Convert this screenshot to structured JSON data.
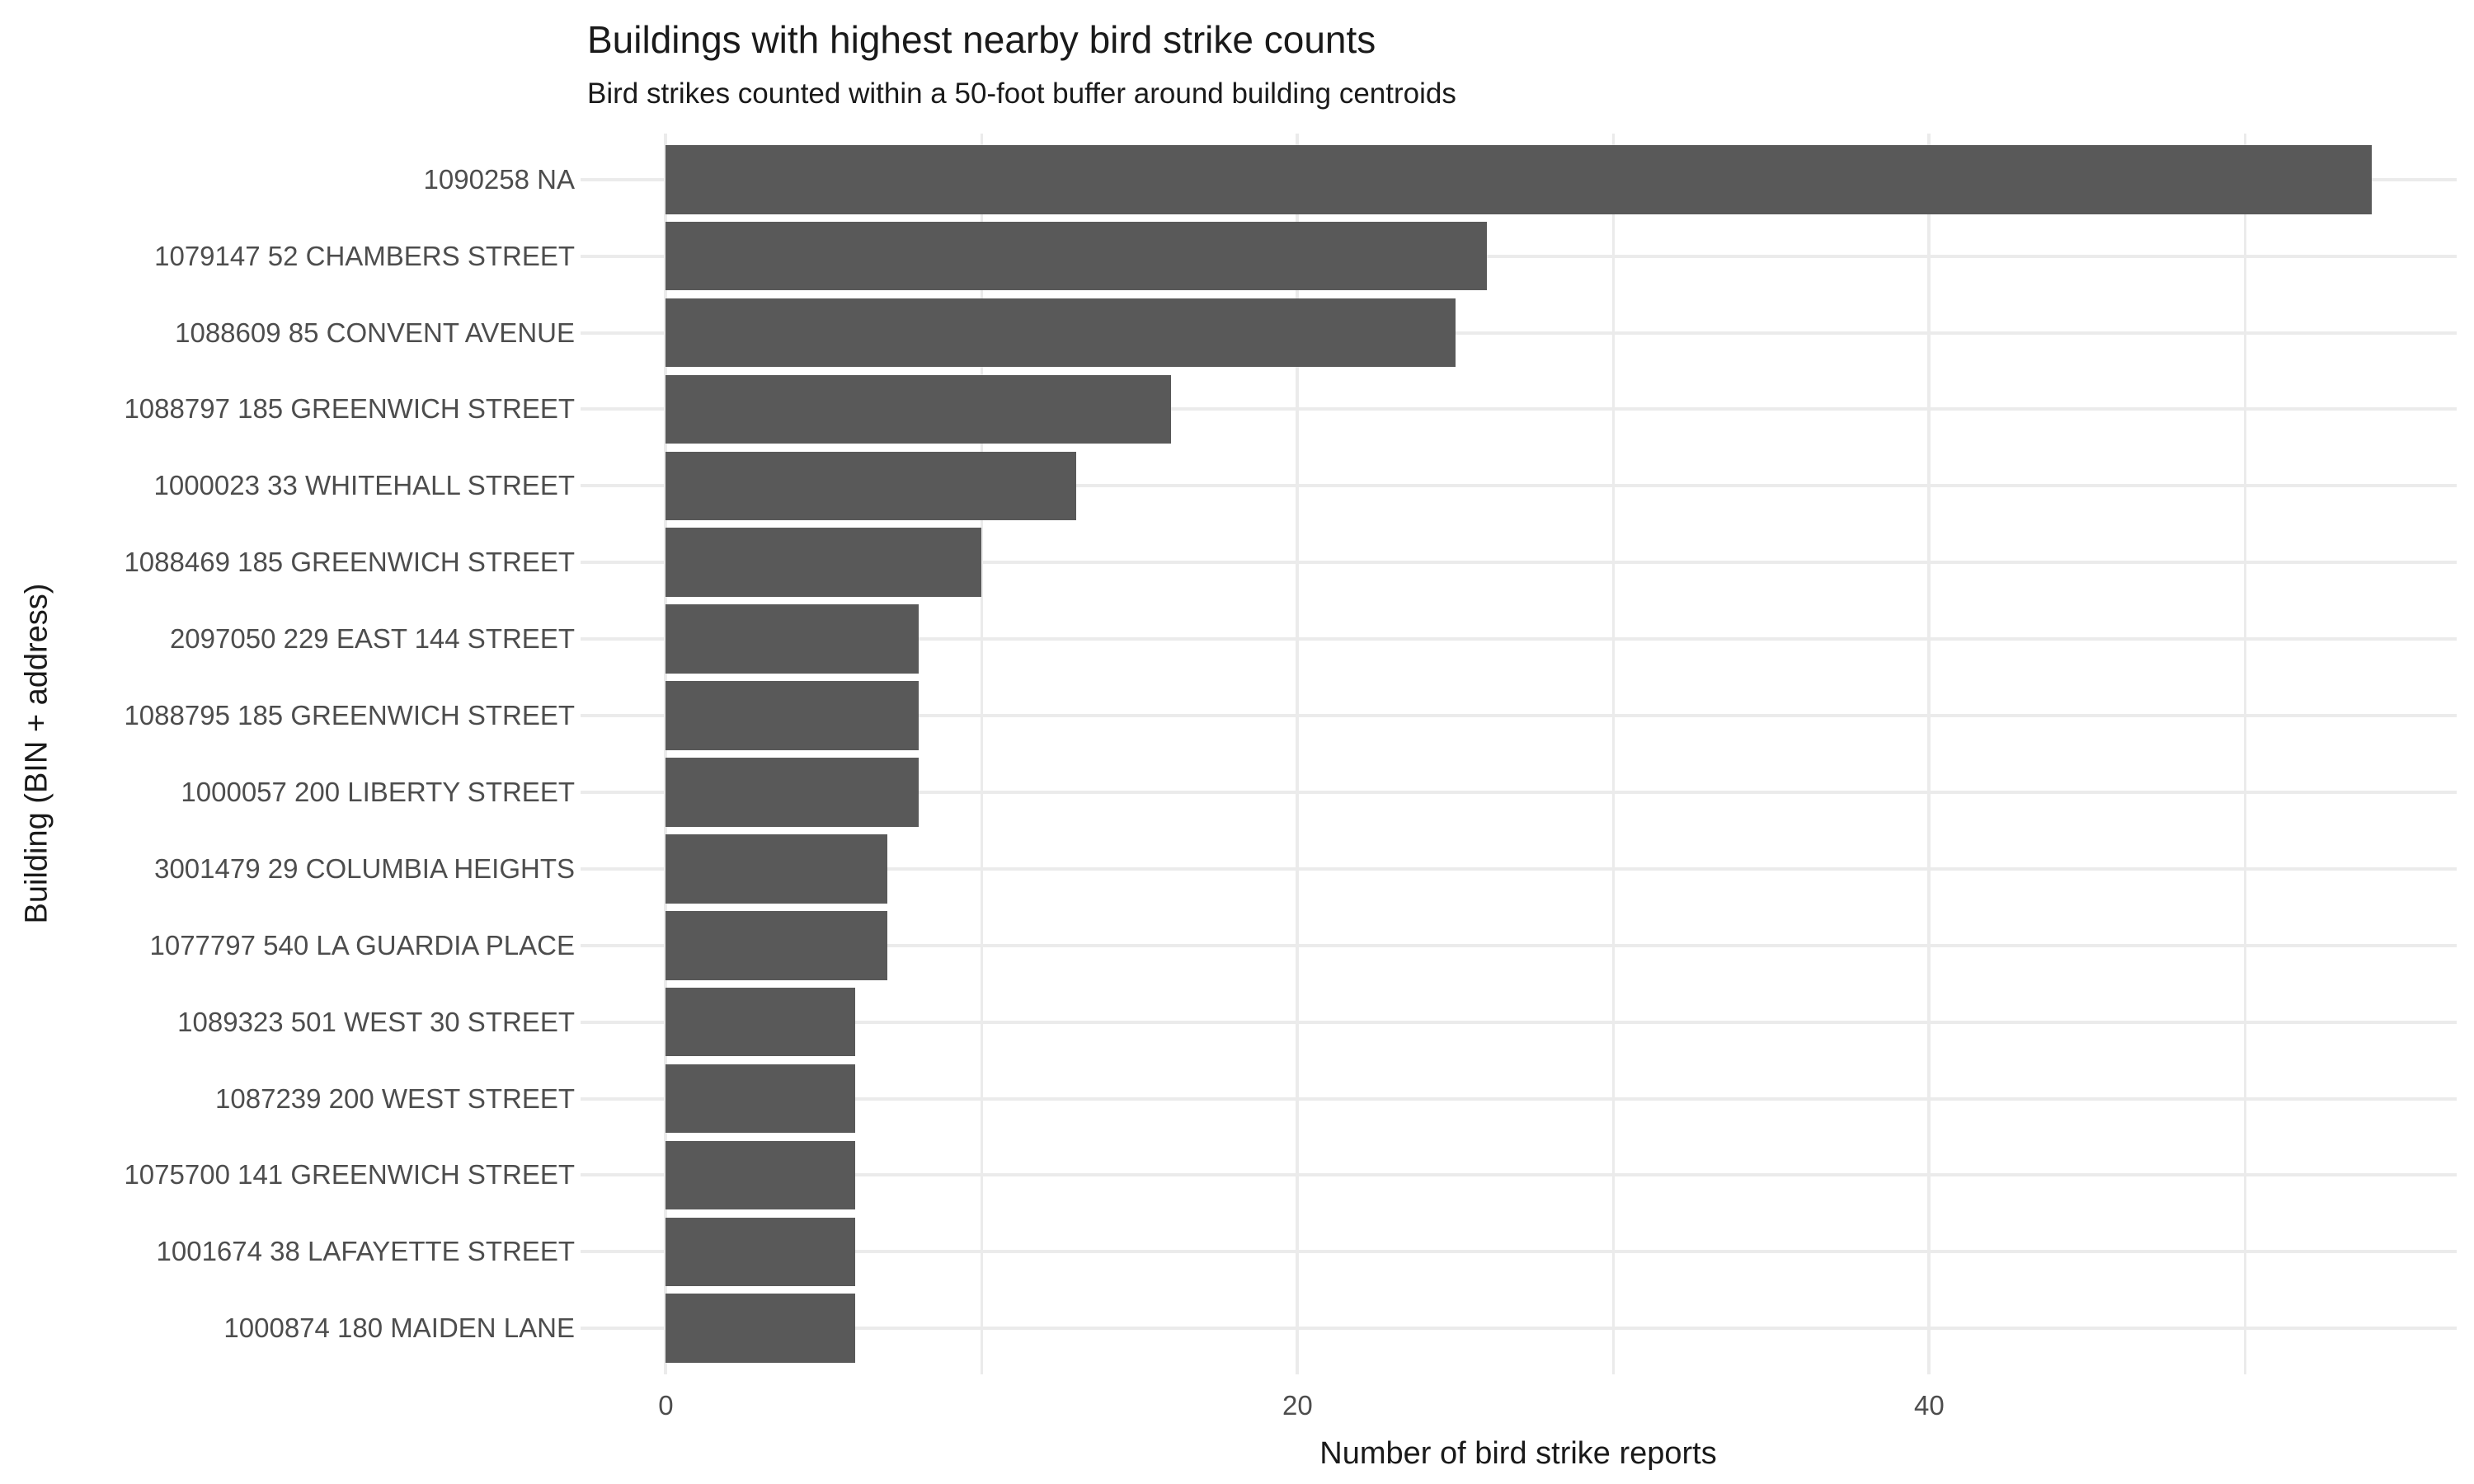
{
  "chart_data": {
    "type": "bar",
    "orientation": "horizontal",
    "title": "Buildings with highest nearby bird strike counts",
    "subtitle": "Bird strikes counted within a 50-foot buffer around building centroids",
    "xlabel": "Number of bird strike reports",
    "ylabel": "Building (BIN + address)",
    "categories": [
      "1090258 NA",
      "1079147 52 CHAMBERS STREET",
      "1088609 85 CONVENT AVENUE",
      "1088797 185 GREENWICH STREET",
      "1000023 33 WHITEHALL STREET",
      "1088469 185 GREENWICH STREET",
      "2097050 229 EAST 144 STREET",
      "1088795 185 GREENWICH STREET",
      "1000057 200 LIBERTY STREET",
      "3001479 29 COLUMBIA HEIGHTS",
      "1077797 540 LA GUARDIA PLACE",
      "1089323 501 WEST 30 STREET",
      "1087239 200 WEST STREET",
      "1075700 141 GREENWICH STREET",
      "1001674 38 LAFAYETTE STREET",
      "1000874 180 MAIDEN LANE"
    ],
    "values": [
      54,
      26,
      25,
      16,
      13,
      10,
      8,
      8,
      8,
      7,
      7,
      6,
      6,
      6,
      6,
      6
    ],
    "xlim": [
      -2.7,
      56.7
    ],
    "x_major_ticks": [
      0,
      20,
      40
    ],
    "x_minor_ticks": [
      10,
      30,
      50
    ],
    "grid": true,
    "legend": "none",
    "colors": {
      "bar": "#595959",
      "grid": "#EBEBEB",
      "axis_text": "#4D4D4D",
      "title_text": "#1A1A1A",
      "background": "#FFFFFF"
    }
  }
}
